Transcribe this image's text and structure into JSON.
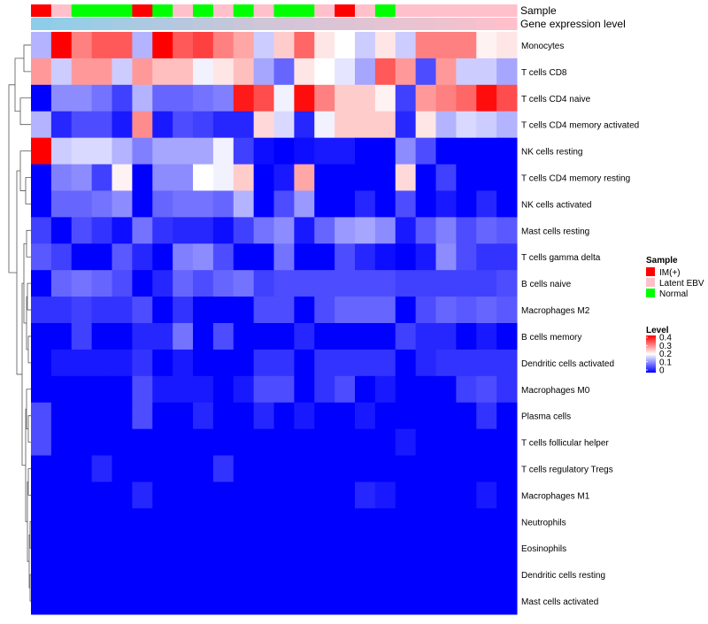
{
  "chart_data": {
    "type": "heatmap",
    "title": "",
    "annotation_labels": {
      "sample": "Sample",
      "gene": "Gene expression level"
    },
    "columns": 24,
    "sample_groups": [
      "IM",
      "LAT",
      "NORM",
      "NORM",
      "NORM",
      "IM",
      "NORM",
      "LAT",
      "NORM",
      "LAT",
      "NORM",
      "LAT",
      "NORM",
      "NORM",
      "LAT",
      "IM",
      "LAT",
      "NORM",
      "LAT",
      "LAT",
      "LAT",
      "LAT",
      "LAT",
      "LAT"
    ],
    "gene_expression_level": [
      0.05,
      0.1,
      0.15,
      0.2,
      0.25,
      0.3,
      0.35,
      0.4,
      0.45,
      0.5,
      0.55,
      0.6,
      0.63,
      0.66,
      0.69,
      0.72,
      0.75,
      0.78,
      0.81,
      0.84,
      0.87,
      0.9,
      0.95,
      1.0
    ],
    "rows": [
      {
        "label": "Monocytes",
        "values": [
          0.14,
          0.4,
          0.3,
          0.33,
          0.33,
          0.14,
          0.4,
          0.33,
          0.35,
          0.3,
          0.27,
          0.16,
          0.24,
          0.32,
          0.22,
          0.2,
          0.16,
          0.22,
          0.16,
          0.3,
          0.3,
          0.3,
          0.21,
          0.22
        ]
      },
      {
        "label": "T cells CD8",
        "values": [
          0.28,
          0.16,
          0.28,
          0.28,
          0.16,
          0.28,
          0.25,
          0.25,
          0.19,
          0.22,
          0.25,
          0.13,
          0.08,
          0.22,
          0.2,
          0.18,
          0.13,
          0.33,
          0.28,
          0.06,
          0.28,
          0.16,
          0.16,
          0.13
        ]
      },
      {
        "label": "T cells CD4 naive",
        "values": [
          0.0,
          0.11,
          0.11,
          0.09,
          0.05,
          0.14,
          0.08,
          0.08,
          0.09,
          0.1,
          0.38,
          0.34,
          0.19,
          0.39,
          0.3,
          0.24,
          0.24,
          0.21,
          0.05,
          0.28,
          0.3,
          0.32,
          0.39,
          0.34
        ]
      },
      {
        "label": "T cells CD4 memory activated",
        "values": [
          0.14,
          0.03,
          0.06,
          0.06,
          0.02,
          0.29,
          0.02,
          0.06,
          0.05,
          0.03,
          0.03,
          0.23,
          0.17,
          0.03,
          0.19,
          0.24,
          0.24,
          0.24,
          0.03,
          0.22,
          0.14,
          0.17,
          0.16,
          0.14
        ]
      },
      {
        "label": "NK cells resting",
        "values": [
          0.4,
          0.16,
          0.17,
          0.17,
          0.14,
          0.1,
          0.13,
          0.13,
          0.13,
          0.19,
          0.05,
          0.01,
          0.0,
          0.01,
          0.02,
          0.02,
          0.0,
          0.0,
          0.11,
          0.06,
          0.0,
          0.0,
          0.0,
          0.0
        ]
      },
      {
        "label": "T cells CD4 memory resting",
        "values": [
          0.0,
          0.1,
          0.11,
          0.05,
          0.21,
          0.0,
          0.11,
          0.11,
          0.2,
          0.19,
          0.24,
          0.0,
          0.02,
          0.27,
          0.0,
          0.0,
          0.0,
          0.0,
          0.23,
          0.0,
          0.05,
          0.0,
          0.0,
          0.0
        ]
      },
      {
        "label": "NK cells activated",
        "values": [
          0.0,
          0.08,
          0.08,
          0.09,
          0.11,
          0.0,
          0.08,
          0.09,
          0.09,
          0.08,
          0.14,
          0.0,
          0.06,
          0.12,
          0.0,
          0.0,
          0.03,
          0.0,
          0.06,
          0.0,
          0.02,
          0.0,
          0.03,
          0.0
        ]
      },
      {
        "label": "Mast cells resting",
        "values": [
          0.05,
          0.0,
          0.06,
          0.04,
          0.01,
          0.09,
          0.04,
          0.03,
          0.03,
          0.01,
          0.05,
          0.09,
          0.11,
          0.02,
          0.08,
          0.12,
          0.13,
          0.11,
          0.02,
          0.07,
          0.1,
          0.06,
          0.08,
          0.07
        ]
      },
      {
        "label": "T cells gamma delta",
        "values": [
          0.07,
          0.05,
          0.0,
          0.0,
          0.07,
          0.03,
          0.0,
          0.1,
          0.11,
          0.06,
          0.0,
          0.0,
          0.09,
          0.0,
          0.0,
          0.06,
          0.03,
          0.01,
          0.0,
          0.02,
          0.11,
          0.06,
          0.04,
          0.04
        ]
      },
      {
        "label": "B cells naive",
        "values": [
          0.0,
          0.08,
          0.09,
          0.08,
          0.06,
          0.0,
          0.03,
          0.08,
          0.06,
          0.08,
          0.09,
          0.05,
          0.06,
          0.06,
          0.06,
          0.06,
          0.06,
          0.06,
          0.05,
          0.05,
          0.05,
          0.05,
          0.05,
          0.06
        ]
      },
      {
        "label": "Macrophages M2",
        "values": [
          0.04,
          0.04,
          0.05,
          0.04,
          0.04,
          0.06,
          0.0,
          0.04,
          0.0,
          0.0,
          0.0,
          0.06,
          0.06,
          0.0,
          0.06,
          0.08,
          0.08,
          0.08,
          0.0,
          0.06,
          0.08,
          0.07,
          0.08,
          0.07
        ]
      },
      {
        "label": "B cells memory",
        "values": [
          0.0,
          0.0,
          0.05,
          0.0,
          0.0,
          0.03,
          0.03,
          0.09,
          0.0,
          0.06,
          0.0,
          0.0,
          0.0,
          0.03,
          0.0,
          0.0,
          0.0,
          0.0,
          0.05,
          0.03,
          0.03,
          0.0,
          0.02,
          0.0
        ]
      },
      {
        "label": "Dendritic cells activated",
        "values": [
          0.0,
          0.02,
          0.02,
          0.02,
          0.02,
          0.04,
          0.0,
          0.02,
          0.0,
          0.0,
          0.0,
          0.04,
          0.04,
          0.0,
          0.04,
          0.04,
          0.04,
          0.04,
          0.0,
          0.03,
          0.04,
          0.04,
          0.04,
          0.04
        ]
      },
      {
        "label": "Macrophages M0",
        "values": [
          0.0,
          0.0,
          0.0,
          0.0,
          0.0,
          0.06,
          0.02,
          0.02,
          0.02,
          0.0,
          0.02,
          0.06,
          0.06,
          0.0,
          0.04,
          0.06,
          0.0,
          0.02,
          0.0,
          0.0,
          0.0,
          0.05,
          0.06,
          0.04
        ]
      },
      {
        "label": "Plasma cells",
        "values": [
          0.06,
          0.0,
          0.0,
          0.0,
          0.0,
          0.06,
          0.0,
          0.0,
          0.03,
          0.0,
          0.0,
          0.03,
          0.0,
          0.02,
          0.0,
          0.0,
          0.02,
          0.0,
          0.0,
          0.0,
          0.0,
          0.0,
          0.04,
          0.0
        ]
      },
      {
        "label": "T cells follicular helper",
        "values": [
          0.06,
          0.0,
          0.0,
          0.0,
          0.0,
          0.0,
          0.0,
          0.0,
          0.0,
          0.0,
          0.0,
          0.0,
          0.0,
          0.0,
          0.0,
          0.0,
          0.0,
          0.0,
          0.02,
          0.0,
          0.0,
          0.0,
          0.0,
          0.0
        ]
      },
      {
        "label": "T cells regulatory  Tregs",
        "values": [
          0.0,
          0.0,
          0.0,
          0.03,
          0.0,
          0.0,
          0.0,
          0.0,
          0.0,
          0.04,
          0.0,
          0.0,
          0.0,
          0.0,
          0.0,
          0.0,
          0.0,
          0.0,
          0.0,
          0.0,
          0.0,
          0.0,
          0.0,
          0.0
        ]
      },
      {
        "label": "Macrophages M1",
        "values": [
          0.0,
          0.0,
          0.0,
          0.0,
          0.0,
          0.03,
          0.0,
          0.0,
          0.0,
          0.0,
          0.0,
          0.0,
          0.0,
          0.0,
          0.0,
          0.0,
          0.03,
          0.02,
          0.0,
          0.0,
          0.0,
          0.0,
          0.02,
          0.0
        ]
      },
      {
        "label": "Neutrophils",
        "values": [
          0,
          0,
          0,
          0,
          0,
          0,
          0,
          0,
          0,
          0,
          0,
          0,
          0,
          0,
          0,
          0,
          0,
          0,
          0,
          0,
          0,
          0,
          0,
          0
        ]
      },
      {
        "label": "Eosinophils",
        "values": [
          0,
          0,
          0,
          0,
          0,
          0,
          0,
          0,
          0,
          0,
          0,
          0,
          0,
          0,
          0,
          0,
          0,
          0,
          0,
          0,
          0,
          0,
          0,
          0
        ]
      },
      {
        "label": "Dendritic cells resting",
        "values": [
          0,
          0,
          0,
          0,
          0,
          0,
          0,
          0,
          0,
          0,
          0,
          0,
          0,
          0,
          0,
          0,
          0,
          0,
          0,
          0,
          0,
          0,
          0,
          0
        ]
      },
      {
        "label": "Mast cells activated",
        "values": [
          0,
          0,
          0,
          0,
          0,
          0,
          0,
          0,
          0,
          0,
          0,
          0,
          0,
          0,
          0,
          0,
          0,
          0,
          0,
          0,
          0,
          0,
          0,
          0
        ]
      }
    ],
    "color_scale": {
      "min": 0,
      "mid": 0.2,
      "max": 0.4,
      "low_color": "#0000ff",
      "mid_color": "#ffffff",
      "high_color": "#ff0000"
    },
    "sample_colors": {
      "IM": "#ff0000",
      "LAT": "#ffc0cb",
      "NORM": "#00ff00"
    },
    "gene_level_colors": {
      "low": "#87ceeb",
      "high": "#ffc0cb"
    },
    "legend": {
      "sample_title": "Sample",
      "sample_entries": [
        {
          "key": "IM",
          "label": "IM(+)"
        },
        {
          "key": "LAT",
          "label": "Latent EBV"
        },
        {
          "key": "NORM",
          "label": "Normal"
        }
      ],
      "level_title": "Level",
      "level_ticks": [
        {
          "value": 0.4,
          "label": "0.4"
        },
        {
          "value": 0.3,
          "label": "0.3"
        },
        {
          "value": 0.2,
          "label": "0.2"
        },
        {
          "value": 0.1,
          "label": "0.1"
        },
        {
          "value": 0.0,
          "label": "0"
        }
      ],
      "placement": "right"
    },
    "dendrogram": "row-clustering"
  }
}
